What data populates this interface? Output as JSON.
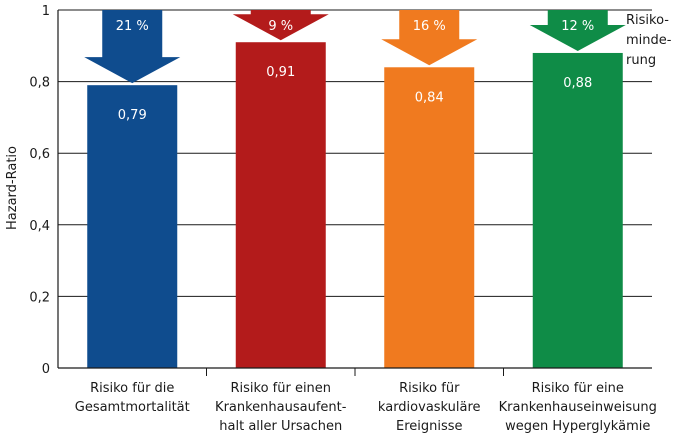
{
  "chart_data": {
    "type": "bar",
    "ylabel": "Hazard-Ratio",
    "ylim": [
      0,
      1
    ],
    "yticks": [
      "0",
      "0,2",
      "0,4",
      "0,6",
      "0,8",
      "1"
    ],
    "grid": true,
    "side_label": [
      "Risiko-",
      "minde-",
      "rung"
    ],
    "categories": [
      [
        "Risiko für die",
        "Gesamtmortalität"
      ],
      [
        "Risiko für einen",
        "Krankenhausaufent-",
        "halt aller Ursachen"
      ],
      [
        "Risiko für",
        "kardiovaskuläre",
        "Ereignisse"
      ],
      [
        "Risiko für eine",
        "Krankenhauseinweisung",
        "wegen Hyperglykämie"
      ]
    ],
    "values": [
      0.79,
      0.91,
      0.84,
      0.88
    ],
    "value_labels": [
      "0,79",
      "0,91",
      "0,84",
      "0,88"
    ],
    "risk_reduction": [
      "21 %",
      "9 %",
      "16 %",
      "12 %"
    ],
    "colors": [
      "#0f4c8e",
      "#b31b1b",
      "#f07a1f",
      "#0f8c47"
    ]
  }
}
